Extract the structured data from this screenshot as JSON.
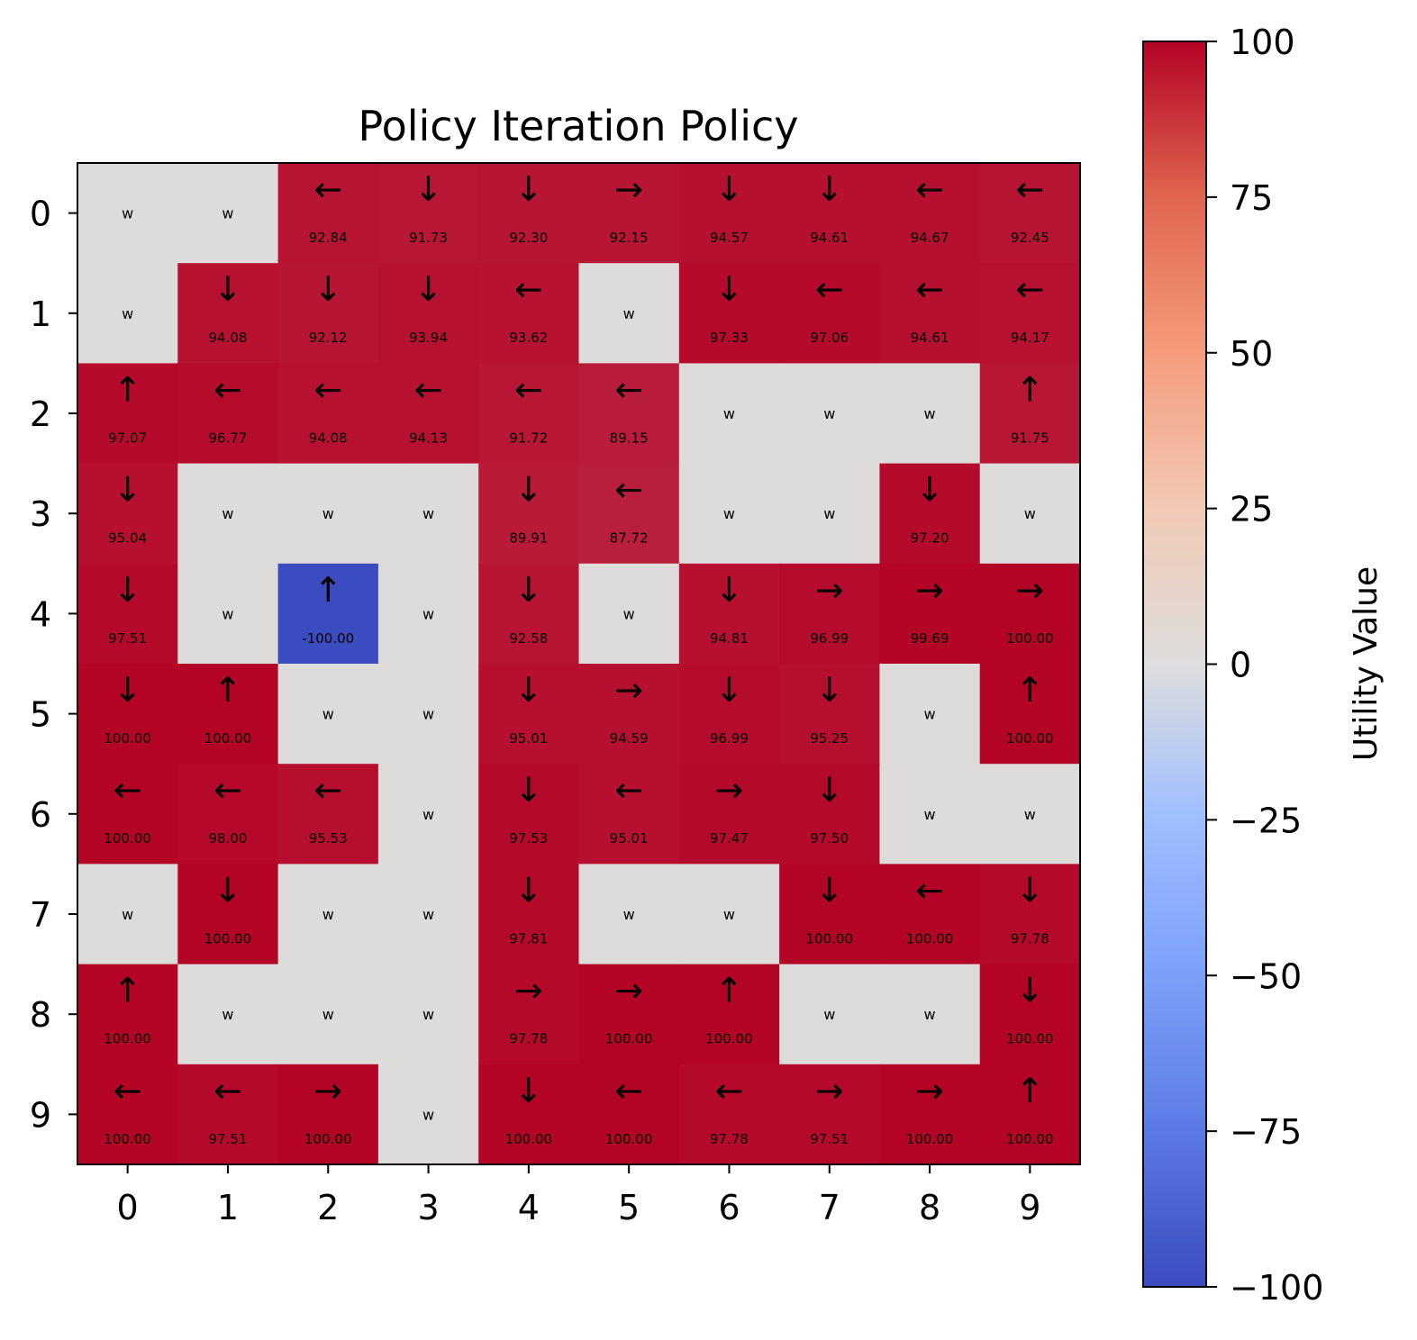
{
  "chart_data": {
    "type": "heatmap",
    "title": "Policy Iteration Policy",
    "x_ticks": [
      "0",
      "1",
      "2",
      "3",
      "4",
      "5",
      "6",
      "7",
      "8",
      "9"
    ],
    "y_ticks": [
      "0",
      "1",
      "2",
      "3",
      "4",
      "5",
      "6",
      "7",
      "8",
      "9"
    ],
    "wall_label": "w",
    "grid": [
      [
        {
          "w": true
        },
        {
          "w": true
        },
        {
          "a": "←",
          "v": "92.84"
        },
        {
          "a": "↓",
          "v": "91.73"
        },
        {
          "a": "↓",
          "v": "92.30"
        },
        {
          "a": "→",
          "v": "92.15"
        },
        {
          "a": "↓",
          "v": "94.57"
        },
        {
          "a": "↓",
          "v": "94.61"
        },
        {
          "a": "←",
          "v": "94.67"
        },
        {
          "a": "←",
          "v": "92.45"
        }
      ],
      [
        {
          "w": true
        },
        {
          "a": "↓",
          "v": "94.08"
        },
        {
          "a": "↓",
          "v": "92.12"
        },
        {
          "a": "↓",
          "v": "93.94"
        },
        {
          "a": "←",
          "v": "93.62"
        },
        {
          "w": true
        },
        {
          "a": "↓",
          "v": "97.33"
        },
        {
          "a": "←",
          "v": "97.06"
        },
        {
          "a": "←",
          "v": "94.61"
        },
        {
          "a": "←",
          "v": "94.17"
        }
      ],
      [
        {
          "a": "↑",
          "v": "97.07"
        },
        {
          "a": "←",
          "v": "96.77"
        },
        {
          "a": "←",
          "v": "94.08"
        },
        {
          "a": "←",
          "v": "94.13"
        },
        {
          "a": "←",
          "v": "91.72"
        },
        {
          "a": "←",
          "v": "89.15"
        },
        {
          "w": true
        },
        {
          "w": true
        },
        {
          "w": true
        },
        {
          "a": "↑",
          "v": "91.75"
        }
      ],
      [
        {
          "a": "↓",
          "v": "95.04"
        },
        {
          "w": true
        },
        {
          "w": true
        },
        {
          "w": true
        },
        {
          "a": "↓",
          "v": "89.91"
        },
        {
          "a": "←",
          "v": "87.72"
        },
        {
          "w": true
        },
        {
          "w": true
        },
        {
          "a": "↓",
          "v": "97.20"
        },
        {
          "w": true
        }
      ],
      [
        {
          "a": "↓",
          "v": "97.51"
        },
        {
          "w": true
        },
        {
          "a": "↑",
          "v": "-100.00"
        },
        {
          "w": true
        },
        {
          "a": "↓",
          "v": "92.58"
        },
        {
          "w": true
        },
        {
          "a": "↓",
          "v": "94.81"
        },
        {
          "a": "→",
          "v": "96.99"
        },
        {
          "a": "→",
          "v": "99.69"
        },
        {
          "a": "→",
          "v": "100.00"
        }
      ],
      [
        {
          "a": "↓",
          "v": "100.00"
        },
        {
          "a": "↑",
          "v": "100.00"
        },
        {
          "w": true
        },
        {
          "w": true
        },
        {
          "a": "↓",
          "v": "95.01"
        },
        {
          "a": "→",
          "v": "94.59"
        },
        {
          "a": "↓",
          "v": "96.99"
        },
        {
          "a": "↓",
          "v": "95.25"
        },
        {
          "w": true
        },
        {
          "a": "↑",
          "v": "100.00"
        }
      ],
      [
        {
          "a": "←",
          "v": "100.00"
        },
        {
          "a": "←",
          "v": "98.00"
        },
        {
          "a": "←",
          "v": "95.53"
        },
        {
          "w": true
        },
        {
          "a": "↓",
          "v": "97.53"
        },
        {
          "a": "←",
          "v": "95.01"
        },
        {
          "a": "→",
          "v": "97.47"
        },
        {
          "a": "↓",
          "v": "97.50"
        },
        {
          "w": true
        },
        {
          "w": true
        }
      ],
      [
        {
          "w": true
        },
        {
          "a": "↓",
          "v": "100.00"
        },
        {
          "w": true
        },
        {
          "w": true
        },
        {
          "a": "↓",
          "v": "97.81"
        },
        {
          "w": true
        },
        {
          "w": true
        },
        {
          "a": "↓",
          "v": "100.00"
        },
        {
          "a": "←",
          "v": "100.00"
        },
        {
          "a": "↓",
          "v": "97.78"
        }
      ],
      [
        {
          "a": "↑",
          "v": "100.00"
        },
        {
          "w": true
        },
        {
          "w": true
        },
        {
          "w": true
        },
        {
          "a": "→",
          "v": "97.78"
        },
        {
          "a": "→",
          "v": "100.00"
        },
        {
          "a": "↑",
          "v": "100.00"
        },
        {
          "w": true
        },
        {
          "w": true
        },
        {
          "a": "↓",
          "v": "100.00"
        }
      ],
      [
        {
          "a": "←",
          "v": "100.00"
        },
        {
          "a": "←",
          "v": "97.51"
        },
        {
          "a": "→",
          "v": "100.00"
        },
        {
          "w": true
        },
        {
          "a": "↓",
          "v": "100.00"
        },
        {
          "a": "←",
          "v": "100.00"
        },
        {
          "a": "←",
          "v": "97.78"
        },
        {
          "a": "→",
          "v": "97.51"
        },
        {
          "a": "→",
          "v": "100.00"
        },
        {
          "a": "↑",
          "v": "100.00"
        }
      ]
    ],
    "colorbar": {
      "label": "Utility Value",
      "range": [
        -100,
        100
      ],
      "ticks": [
        "100",
        "75",
        "50",
        "25",
        "0",
        "−25",
        "−50",
        "−75",
        "−100"
      ],
      "tick_values": [
        100,
        75,
        50,
        25,
        0,
        -25,
        -50,
        -75,
        -100
      ],
      "colormap": "coolwarm"
    },
    "colors": {
      "wall": "#dddcdb",
      "min": "#3b4cc0",
      "mid": "#dddddd",
      "max": "#b40426"
    }
  }
}
